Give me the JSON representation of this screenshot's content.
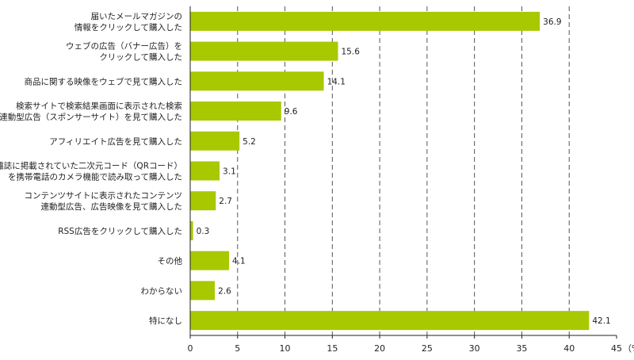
{
  "chart_data": {
    "type": "bar",
    "orientation": "horizontal",
    "categories": [
      [
        "届いたメールマガジンの",
        "情報をクリックして購入した"
      ],
      [
        "ウェブの広告（バナー広告）を",
        "クリックして購入した"
      ],
      [
        "商品に関する映像をウェブで見て購入した"
      ],
      [
        "検索サイトで検索結果画面に表示された検索",
        "連動型広告（スポンサーサイト）を見て購入した"
      ],
      [
        "アフィリエイト広告を見て購入した"
      ],
      [
        "雑誌に掲載されていた二次元コード（QRコード）",
        "を携帯電話のカメラ機能で読み取って購入した"
      ],
      [
        "コンテンツサイトに表示されたコンテンツ",
        "連動型広告、広告映像を見て購入した"
      ],
      [
        "RSS広告をクリックして購入した"
      ],
      [
        "その他"
      ],
      [
        "わからない"
      ],
      [
        "特になし"
      ]
    ],
    "values": [
      36.9,
      15.6,
      14.1,
      9.6,
      5.2,
      3.1,
      2.7,
      0.3,
      4.1,
      2.6,
      42.1
    ],
    "value_labels": [
      "36.9",
      "15.6",
      "14.1",
      "9.6",
      "5.2",
      "3.1",
      "2.7",
      "0.3",
      "4.1",
      "2.6",
      "42.1"
    ],
    "xlim": [
      0,
      45
    ],
    "x_ticks": [
      0,
      5,
      10,
      15,
      20,
      25,
      30,
      35,
      40,
      45
    ],
    "x_unit": "（%）",
    "grid": "vertical dashed",
    "bar_color": "#a8c800",
    "axis_color": "#222222",
    "grid_color": "#555555"
  }
}
